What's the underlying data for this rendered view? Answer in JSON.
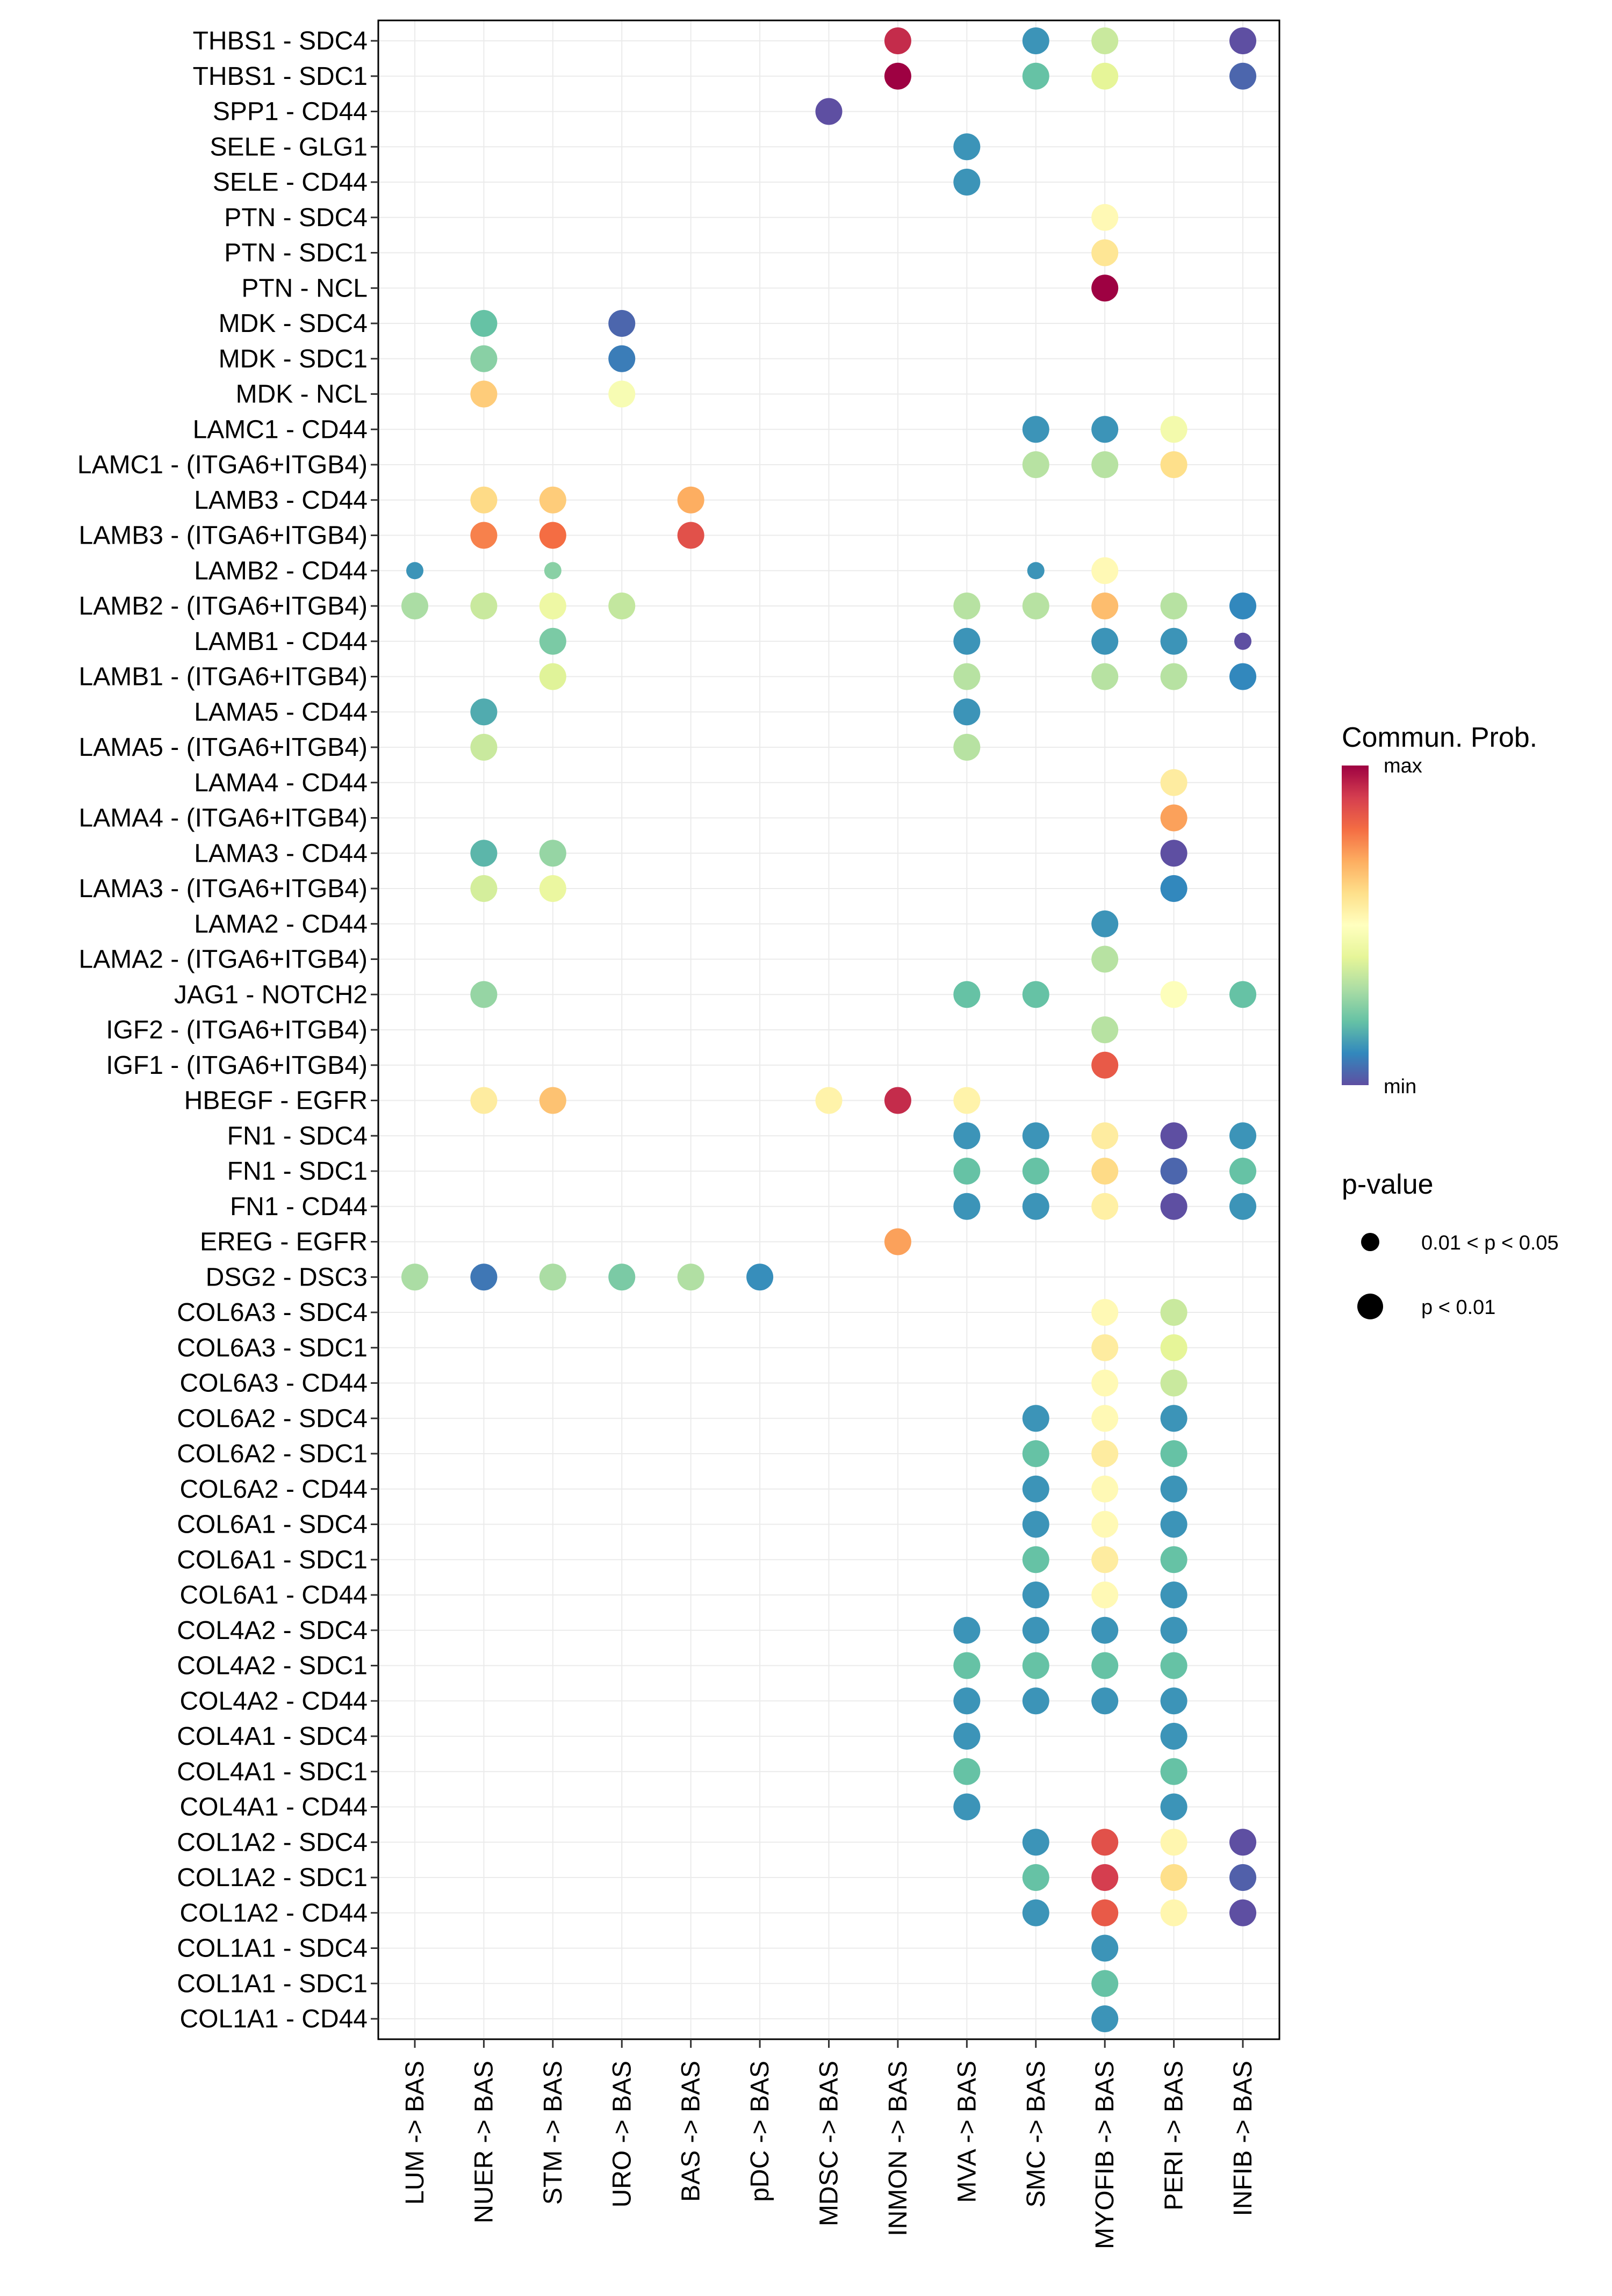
{
  "chart_data": {
    "type": "scatter",
    "subtype": "dot-plot",
    "title": "",
    "xlabel": "",
    "ylabel": "",
    "grid": true,
    "x_categories": [
      "LUM -> BAS",
      "NUER -> BAS",
      "STM -> BAS",
      "URO -> BAS",
      "BAS -> BAS",
      "pDC -> BAS",
      "MDSC -> BAS",
      "INMON -> BAS",
      "MVA -> BAS",
      "SMC -> BAS",
      "MYOFIB -> BAS",
      "PERI -> BAS",
      "INFIB -> BAS"
    ],
    "y_categories": [
      "THBS1 - SDC4",
      "THBS1 - SDC1",
      "SPP1 - CD44",
      "SELE - GLG1",
      "SELE - CD44",
      "PTN - SDC4",
      "PTN - SDC1",
      "PTN - NCL",
      "MDK - SDC4",
      "MDK - SDC1",
      "MDK - NCL",
      "LAMC1 - CD44",
      "LAMC1 - (ITGA6+ITGB4)",
      "LAMB3 - CD44",
      "LAMB3 - (ITGA6+ITGB4)",
      "LAMB2 - CD44",
      "LAMB2 - (ITGA6+ITGB4)",
      "LAMB1 - CD44",
      "LAMB1 - (ITGA6+ITGB4)",
      "LAMA5 - CD44",
      "LAMA5 - (ITGA6+ITGB4)",
      "LAMA4 - CD44",
      "LAMA4 - (ITGA6+ITGB4)",
      "LAMA3 - CD44",
      "LAMA3 - (ITGA6+ITGB4)",
      "LAMA2 - CD44",
      "LAMA2 - (ITGA6+ITGB4)",
      "JAG1 - NOTCH2",
      "IGF2 - (ITGA6+ITGB4)",
      "IGF1 - (ITGA6+ITGB4)",
      "HBEGF - EGFR",
      "FN1 - SDC4",
      "FN1 - SDC1",
      "FN1 - CD44",
      "EREG - EGFR",
      "DSG2 - DSC3",
      "COL6A3 - SDC4",
      "COL6A3 - SDC1",
      "COL6A3 - CD44",
      "COL6A2 - SDC4",
      "COL6A2 - SDC1",
      "COL6A2 - CD44",
      "COL6A1 - SDC4",
      "COL6A1 - SDC1",
      "COL6A1 - CD44",
      "COL4A2 - SDC4",
      "COL4A2 - SDC1",
      "COL4A2 - CD44",
      "COL4A1 - SDC4",
      "COL4A1 - SDC1",
      "COL4A1 - CD44",
      "COL1A2 - SDC4",
      "COL1A2 - SDC1",
      "COL1A2 - CD44",
      "COL1A1 - SDC4",
      "COL1A1 - SDC1",
      "COL1A1 - CD44"
    ],
    "value_scale": {
      "min_label": "min",
      "max_label": "max",
      "range": [
        0,
        1
      ],
      "colormap": "Spectral (reversed: purple=min, dark red=max)"
    },
    "points_note": "Each point: [y_label, x_label, relative commun. prob (0=min,1=max), p-value class]",
    "points": [
      [
        "THBS1 - SDC4",
        "INMON -> BAS",
        0.93,
        "p < 0.01"
      ],
      [
        "THBS1 - SDC4",
        "SMC -> BAS",
        0.12,
        "p < 0.01"
      ],
      [
        "THBS1 - SDC4",
        "MYOFIB -> BAS",
        0.35,
        "p < 0.01"
      ],
      [
        "THBS1 - SDC4",
        "INFIB -> BAS",
        0.0,
        "p < 0.01"
      ],
      [
        "THBS1 - SDC1",
        "INMON -> BAS",
        1.0,
        "p < 0.01"
      ],
      [
        "THBS1 - SDC1",
        "SMC -> BAS",
        0.2,
        "p < 0.01"
      ],
      [
        "THBS1 - SDC1",
        "MYOFIB -> BAS",
        0.4,
        "p < 0.01"
      ],
      [
        "THBS1 - SDC1",
        "INFIB -> BAS",
        0.04,
        "p < 0.01"
      ],
      [
        "SPP1 - CD44",
        "MDSC -> BAS",
        0.0,
        "p < 0.01"
      ],
      [
        "SELE - GLG1",
        "MVA -> BAS",
        0.12,
        "p < 0.01"
      ],
      [
        "SELE - CD44",
        "MVA -> BAS",
        0.12,
        "p < 0.01"
      ],
      [
        "PTN - SDC4",
        "MYOFIB -> BAS",
        0.52,
        "p < 0.01"
      ],
      [
        "PTN - SDC1",
        "MYOFIB -> BAS",
        0.58,
        "p < 0.01"
      ],
      [
        "PTN - NCL",
        "MYOFIB -> BAS",
        1.0,
        "p < 0.01"
      ],
      [
        "MDK - SDC4",
        "NUER -> BAS",
        0.2,
        "p < 0.01"
      ],
      [
        "MDK - SDC4",
        "URO -> BAS",
        0.04,
        "p < 0.01"
      ],
      [
        "MDK - SDC1",
        "NUER -> BAS",
        0.25,
        "p < 0.01"
      ],
      [
        "MDK - SDC1",
        "URO -> BAS",
        0.08,
        "p < 0.01"
      ],
      [
        "MDK - NCL",
        "NUER -> BAS",
        0.64,
        "p < 0.01"
      ],
      [
        "MDK - NCL",
        "URO -> BAS",
        0.47,
        "p < 0.01"
      ],
      [
        "LAMC1 - CD44",
        "SMC -> BAS",
        0.12,
        "p < 0.01"
      ],
      [
        "LAMC1 - CD44",
        "MYOFIB -> BAS",
        0.12,
        "p < 0.01"
      ],
      [
        "LAMC1 - CD44",
        "PERI -> BAS",
        0.45,
        "p < 0.01"
      ],
      [
        "LAMC1 - (ITGA6+ITGB4)",
        "SMC -> BAS",
        0.32,
        "p < 0.01"
      ],
      [
        "LAMC1 - (ITGA6+ITGB4)",
        "MYOFIB -> BAS",
        0.32,
        "p < 0.01"
      ],
      [
        "LAMC1 - (ITGA6+ITGB4)",
        "PERI -> BAS",
        0.6,
        "p < 0.01"
      ],
      [
        "LAMB3 - CD44",
        "NUER -> BAS",
        0.61,
        "p < 0.01"
      ],
      [
        "LAMB3 - CD44",
        "STM -> BAS",
        0.64,
        "p < 0.01"
      ],
      [
        "LAMB3 - CD44",
        "BAS -> BAS",
        0.7,
        "p < 0.01"
      ],
      [
        "LAMB3 - (ITGA6+ITGB4)",
        "NUER -> BAS",
        0.77,
        "p < 0.01"
      ],
      [
        "LAMB3 - (ITGA6+ITGB4)",
        "STM -> BAS",
        0.8,
        "p < 0.01"
      ],
      [
        "LAMB3 - (ITGA6+ITGB4)",
        "BAS -> BAS",
        0.86,
        "p < 0.01"
      ],
      [
        "LAMB2 - CD44",
        "LUM -> BAS",
        0.12,
        "0.01 < p < 0.05"
      ],
      [
        "LAMB2 - CD44",
        "STM -> BAS",
        0.25,
        "0.01 < p < 0.05"
      ],
      [
        "LAMB2 - CD44",
        "SMC -> BAS",
        0.12,
        "0.01 < p < 0.05"
      ],
      [
        "LAMB2 - CD44",
        "MYOFIB -> BAS",
        0.52,
        "p < 0.01"
      ],
      [
        "LAMB2 - (ITGA6+ITGB4)",
        "LUM -> BAS",
        0.3,
        "p < 0.01"
      ],
      [
        "LAMB2 - (ITGA6+ITGB4)",
        "NUER -> BAS",
        0.35,
        "p < 0.01"
      ],
      [
        "LAMB2 - (ITGA6+ITGB4)",
        "STM -> BAS",
        0.43,
        "p < 0.01"
      ],
      [
        "LAMB2 - (ITGA6+ITGB4)",
        "URO -> BAS",
        0.34,
        "p < 0.01"
      ],
      [
        "LAMB2 - (ITGA6+ITGB4)",
        "MVA -> BAS",
        0.32,
        "p < 0.01"
      ],
      [
        "LAMB2 - (ITGA6+ITGB4)",
        "SMC -> BAS",
        0.32,
        "p < 0.01"
      ],
      [
        "LAMB2 - (ITGA6+ITGB4)",
        "MYOFIB -> BAS",
        0.67,
        "p < 0.01"
      ],
      [
        "LAMB2 - (ITGA6+ITGB4)",
        "PERI -> BAS",
        0.32,
        "p < 0.01"
      ],
      [
        "LAMB2 - (ITGA6+ITGB4)",
        "INFIB -> BAS",
        0.1,
        "p < 0.01"
      ],
      [
        "LAMB1 - CD44",
        "STM -> BAS",
        0.23,
        "p < 0.01"
      ],
      [
        "LAMB1 - CD44",
        "MVA -> BAS",
        0.12,
        "p < 0.01"
      ],
      [
        "LAMB1 - CD44",
        "MYOFIB -> BAS",
        0.12,
        "p < 0.01"
      ],
      [
        "LAMB1 - CD44",
        "PERI -> BAS",
        0.12,
        "p < 0.01"
      ],
      [
        "LAMB1 - CD44",
        "INFIB -> BAS",
        0.0,
        "0.01 < p < 0.05"
      ],
      [
        "LAMB1 - (ITGA6+ITGB4)",
        "STM -> BAS",
        0.39,
        "p < 0.01"
      ],
      [
        "LAMB1 - (ITGA6+ITGB4)",
        "MVA -> BAS",
        0.32,
        "p < 0.01"
      ],
      [
        "LAMB1 - (ITGA6+ITGB4)",
        "MYOFIB -> BAS",
        0.32,
        "p < 0.01"
      ],
      [
        "LAMB1 - (ITGA6+ITGB4)",
        "PERI -> BAS",
        0.32,
        "p < 0.01"
      ],
      [
        "LAMB1 - (ITGA6+ITGB4)",
        "INFIB -> BAS",
        0.1,
        "p < 0.01"
      ],
      [
        "LAMA5 - CD44",
        "NUER -> BAS",
        0.16,
        "p < 0.01"
      ],
      [
        "LAMA5 - CD44",
        "MVA -> BAS",
        0.12,
        "p < 0.01"
      ],
      [
        "LAMA5 - (ITGA6+ITGB4)",
        "NUER -> BAS",
        0.35,
        "p < 0.01"
      ],
      [
        "LAMA5 - (ITGA6+ITGB4)",
        "MVA -> BAS",
        0.32,
        "p < 0.01"
      ],
      [
        "LAMA4 - CD44",
        "PERI -> BAS",
        0.56,
        "p < 0.01"
      ],
      [
        "LAMA4 - (ITGA6+ITGB4)",
        "PERI -> BAS",
        0.72,
        "p < 0.01"
      ],
      [
        "LAMA3 - CD44",
        "NUER -> BAS",
        0.18,
        "p < 0.01"
      ],
      [
        "LAMA3 - CD44",
        "STM -> BAS",
        0.27,
        "p < 0.01"
      ],
      [
        "LAMA3 - CD44",
        "PERI -> BAS",
        0.0,
        "p < 0.01"
      ],
      [
        "LAMA3 - (ITGA6+ITGB4)",
        "NUER -> BAS",
        0.37,
        "p < 0.01"
      ],
      [
        "LAMA3 - (ITGA6+ITGB4)",
        "STM -> BAS",
        0.42,
        "p < 0.01"
      ],
      [
        "LAMA3 - (ITGA6+ITGB4)",
        "PERI -> BAS",
        0.1,
        "p < 0.01"
      ],
      [
        "LAMA2 - CD44",
        "MYOFIB -> BAS",
        0.12,
        "p < 0.01"
      ],
      [
        "LAMA2 - (ITGA6+ITGB4)",
        "MYOFIB -> BAS",
        0.32,
        "p < 0.01"
      ],
      [
        "JAG1 - NOTCH2",
        "NUER -> BAS",
        0.27,
        "p < 0.01"
      ],
      [
        "JAG1 - NOTCH2",
        "MVA -> BAS",
        0.2,
        "p < 0.01"
      ],
      [
        "JAG1 - NOTCH2",
        "SMC -> BAS",
        0.2,
        "p < 0.01"
      ],
      [
        "JAG1 - NOTCH2",
        "PERI -> BAS",
        0.49,
        "p < 0.01"
      ],
      [
        "JAG1 - NOTCH2",
        "INFIB -> BAS",
        0.2,
        "p < 0.01"
      ],
      [
        "IGF2 - (ITGA6+ITGB4)",
        "MYOFIB -> BAS",
        0.32,
        "p < 0.01"
      ],
      [
        "IGF1 - (ITGA6+ITGB4)",
        "MYOFIB -> BAS",
        0.84,
        "p < 0.01"
      ],
      [
        "HBEGF - EGFR",
        "NUER -> BAS",
        0.56,
        "p < 0.01"
      ],
      [
        "HBEGF - EGFR",
        "STM -> BAS",
        0.66,
        "p < 0.01"
      ],
      [
        "HBEGF - EGFR",
        "MDSC -> BAS",
        0.54,
        "p < 0.01"
      ],
      [
        "HBEGF - EGFR",
        "INMON -> BAS",
        0.93,
        "p < 0.01"
      ],
      [
        "HBEGF - EGFR",
        "MVA -> BAS",
        0.54,
        "p < 0.01"
      ],
      [
        "FN1 - SDC4",
        "MVA -> BAS",
        0.12,
        "p < 0.01"
      ],
      [
        "FN1 - SDC4",
        "SMC -> BAS",
        0.12,
        "p < 0.01"
      ],
      [
        "FN1 - SDC4",
        "MYOFIB -> BAS",
        0.56,
        "p < 0.01"
      ],
      [
        "FN1 - SDC4",
        "PERI -> BAS",
        0.0,
        "p < 0.01"
      ],
      [
        "FN1 - SDC4",
        "INFIB -> BAS",
        0.12,
        "p < 0.01"
      ],
      [
        "FN1 - SDC1",
        "MVA -> BAS",
        0.2,
        "p < 0.01"
      ],
      [
        "FN1 - SDC1",
        "SMC -> BAS",
        0.2,
        "p < 0.01"
      ],
      [
        "FN1 - SDC1",
        "MYOFIB -> BAS",
        0.61,
        "p < 0.01"
      ],
      [
        "FN1 - SDC1",
        "PERI -> BAS",
        0.04,
        "p < 0.01"
      ],
      [
        "FN1 - SDC1",
        "INFIB -> BAS",
        0.2,
        "p < 0.01"
      ],
      [
        "FN1 - CD44",
        "MVA -> BAS",
        0.12,
        "p < 0.01"
      ],
      [
        "FN1 - CD44",
        "SMC -> BAS",
        0.12,
        "p < 0.01"
      ],
      [
        "FN1 - CD44",
        "MYOFIB -> BAS",
        0.55,
        "p < 0.01"
      ],
      [
        "FN1 - CD44",
        "PERI -> BAS",
        0.0,
        "p < 0.01"
      ],
      [
        "FN1 - CD44",
        "INFIB -> BAS",
        0.12,
        "p < 0.01"
      ],
      [
        "EREG - EGFR",
        "INMON -> BAS",
        0.72,
        "p < 0.01"
      ],
      [
        "DSG2 - DSC3",
        "LUM -> BAS",
        0.3,
        "p < 0.01"
      ],
      [
        "DSG2 - DSC3",
        "NUER -> BAS",
        0.07,
        "p < 0.01"
      ],
      [
        "DSG2 - DSC3",
        "STM -> BAS",
        0.3,
        "p < 0.01"
      ],
      [
        "DSG2 - DSC3",
        "URO -> BAS",
        0.23,
        "p < 0.01"
      ],
      [
        "DSG2 - DSC3",
        "BAS -> BAS",
        0.31,
        "p < 0.01"
      ],
      [
        "DSG2 - DSC3",
        "pDC -> BAS",
        0.11,
        "p < 0.01"
      ],
      [
        "COL6A3 - SDC4",
        "MYOFIB -> BAS",
        0.52,
        "p < 0.01"
      ],
      [
        "COL6A3 - SDC4",
        "PERI -> BAS",
        0.35,
        "p < 0.01"
      ],
      [
        "COL6A3 - SDC1",
        "MYOFIB -> BAS",
        0.56,
        "p < 0.01"
      ],
      [
        "COL6A3 - SDC1",
        "PERI -> BAS",
        0.4,
        "p < 0.01"
      ],
      [
        "COL6A3 - CD44",
        "MYOFIB -> BAS",
        0.52,
        "p < 0.01"
      ],
      [
        "COL6A3 - CD44",
        "PERI -> BAS",
        0.35,
        "p < 0.01"
      ],
      [
        "COL6A2 - SDC4",
        "SMC -> BAS",
        0.12,
        "p < 0.01"
      ],
      [
        "COL6A2 - SDC4",
        "MYOFIB -> BAS",
        0.52,
        "p < 0.01"
      ],
      [
        "COL6A2 - SDC4",
        "PERI -> BAS",
        0.12,
        "p < 0.01"
      ],
      [
        "COL6A2 - SDC1",
        "SMC -> BAS",
        0.2,
        "p < 0.01"
      ],
      [
        "COL6A2 - SDC1",
        "MYOFIB -> BAS",
        0.56,
        "p < 0.01"
      ],
      [
        "COL6A2 - SDC1",
        "PERI -> BAS",
        0.2,
        "p < 0.01"
      ],
      [
        "COL6A2 - CD44",
        "SMC -> BAS",
        0.12,
        "p < 0.01"
      ],
      [
        "COL6A2 - CD44",
        "MYOFIB -> BAS",
        0.52,
        "p < 0.01"
      ],
      [
        "COL6A2 - CD44",
        "PERI -> BAS",
        0.12,
        "p < 0.01"
      ],
      [
        "COL6A1 - SDC4",
        "SMC -> BAS",
        0.12,
        "p < 0.01"
      ],
      [
        "COL6A1 - SDC4",
        "MYOFIB -> BAS",
        0.52,
        "p < 0.01"
      ],
      [
        "COL6A1 - SDC4",
        "PERI -> BAS",
        0.12,
        "p < 0.01"
      ],
      [
        "COL6A1 - SDC1",
        "SMC -> BAS",
        0.2,
        "p < 0.01"
      ],
      [
        "COL6A1 - SDC1",
        "MYOFIB -> BAS",
        0.56,
        "p < 0.01"
      ],
      [
        "COL6A1 - SDC1",
        "PERI -> BAS",
        0.2,
        "p < 0.01"
      ],
      [
        "COL6A1 - CD44",
        "SMC -> BAS",
        0.12,
        "p < 0.01"
      ],
      [
        "COL6A1 - CD44",
        "MYOFIB -> BAS",
        0.52,
        "p < 0.01"
      ],
      [
        "COL6A1 - CD44",
        "PERI -> BAS",
        0.12,
        "p < 0.01"
      ],
      [
        "COL4A2 - SDC4",
        "MVA -> BAS",
        0.12,
        "p < 0.01"
      ],
      [
        "COL4A2 - SDC4",
        "SMC -> BAS",
        0.12,
        "p < 0.01"
      ],
      [
        "COL4A2 - SDC4",
        "MYOFIB -> BAS",
        0.12,
        "p < 0.01"
      ],
      [
        "COL4A2 - SDC4",
        "PERI -> BAS",
        0.12,
        "p < 0.01"
      ],
      [
        "COL4A2 - SDC1",
        "MVA -> BAS",
        0.2,
        "p < 0.01"
      ],
      [
        "COL4A2 - SDC1",
        "SMC -> BAS",
        0.2,
        "p < 0.01"
      ],
      [
        "COL4A2 - SDC1",
        "MYOFIB -> BAS",
        0.2,
        "p < 0.01"
      ],
      [
        "COL4A2 - SDC1",
        "PERI -> BAS",
        0.2,
        "p < 0.01"
      ],
      [
        "COL4A2 - CD44",
        "MVA -> BAS",
        0.12,
        "p < 0.01"
      ],
      [
        "COL4A2 - CD44",
        "SMC -> BAS",
        0.12,
        "p < 0.01"
      ],
      [
        "COL4A2 - CD44",
        "MYOFIB -> BAS",
        0.12,
        "p < 0.01"
      ],
      [
        "COL4A2 - CD44",
        "PERI -> BAS",
        0.12,
        "p < 0.01"
      ],
      [
        "COL4A1 - SDC4",
        "MVA -> BAS",
        0.12,
        "p < 0.01"
      ],
      [
        "COL4A1 - SDC4",
        "PERI -> BAS",
        0.12,
        "p < 0.01"
      ],
      [
        "COL4A1 - SDC1",
        "MVA -> BAS",
        0.2,
        "p < 0.01"
      ],
      [
        "COL4A1 - SDC1",
        "PERI -> BAS",
        0.2,
        "p < 0.01"
      ],
      [
        "COL4A1 - CD44",
        "MVA -> BAS",
        0.12,
        "p < 0.01"
      ],
      [
        "COL4A1 - CD44",
        "PERI -> BAS",
        0.12,
        "p < 0.01"
      ],
      [
        "COL1A2 - SDC4",
        "SMC -> BAS",
        0.12,
        "p < 0.01"
      ],
      [
        "COL1A2 - SDC4",
        "MYOFIB -> BAS",
        0.86,
        "p < 0.01"
      ],
      [
        "COL1A2 - SDC4",
        "PERI -> BAS",
        0.53,
        "p < 0.01"
      ],
      [
        "COL1A2 - SDC4",
        "INFIB -> BAS",
        0.0,
        "p < 0.01"
      ],
      [
        "COL1A2 - SDC1",
        "SMC -> BAS",
        0.2,
        "p < 0.01"
      ],
      [
        "COL1A2 - SDC1",
        "MYOFIB -> BAS",
        0.9,
        "p < 0.01"
      ],
      [
        "COL1A2 - SDC1",
        "PERI -> BAS",
        0.6,
        "p < 0.01"
      ],
      [
        "COL1A2 - SDC1",
        "INFIB -> BAS",
        0.03,
        "p < 0.01"
      ],
      [
        "COL1A2 - CD44",
        "SMC -> BAS",
        0.12,
        "p < 0.01"
      ],
      [
        "COL1A2 - CD44",
        "MYOFIB -> BAS",
        0.84,
        "p < 0.01"
      ],
      [
        "COL1A2 - CD44",
        "PERI -> BAS",
        0.53,
        "p < 0.01"
      ],
      [
        "COL1A2 - CD44",
        "INFIB -> BAS",
        0.0,
        "p < 0.01"
      ],
      [
        "COL1A1 - SDC4",
        "MYOFIB -> BAS",
        0.12,
        "p < 0.01"
      ],
      [
        "COL1A1 - SDC1",
        "MYOFIB -> BAS",
        0.2,
        "p < 0.01"
      ],
      [
        "COL1A1 - CD44",
        "MYOFIB -> BAS",
        0.12,
        "p < 0.01"
      ]
    ],
    "legend": {
      "color": {
        "title": "Commun. Prob.",
        "max_label": "max",
        "min_label": "min",
        "placement": "right"
      },
      "size": {
        "title": "p-value",
        "entries": [
          "0.01 < p < 0.05",
          "p < 0.01"
        ],
        "placement": "right"
      }
    }
  }
}
